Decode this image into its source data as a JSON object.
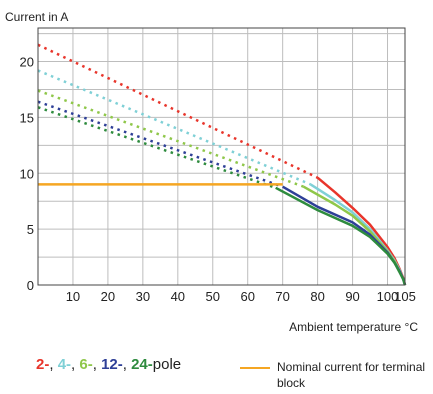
{
  "chart_data": {
    "type": "line",
    "ylabel": "Current in A",
    "xlabel": "Ambient temperature °C",
    "xlim": [
      0,
      105
    ],
    "ylim": [
      0,
      23
    ],
    "x_ticks": [
      10,
      20,
      30,
      40,
      50,
      60,
      70,
      80,
      90,
      100,
      105
    ],
    "x_tick_labels": [
      "10",
      "20",
      "30",
      "40",
      "50",
      "60",
      "70",
      "80",
      "90",
      "100",
      "105"
    ],
    "y_ticks": [
      0,
      5,
      10,
      15,
      20
    ],
    "y_tick_labels": [
      "0",
      "5",
      "10",
      "15",
      "20"
    ],
    "grid": true,
    "series": [
      {
        "name": "2",
        "color": "#e8352b",
        "dotted": [
          [
            0,
            21.5
          ],
          [
            80,
            9.6
          ]
        ],
        "solid": [
          [
            80,
            9.6
          ],
          [
            85,
            8.3
          ],
          [
            90,
            6.9
          ],
          [
            95,
            5.4
          ],
          [
            100,
            3.4
          ],
          [
            102,
            2.4
          ],
          [
            103.5,
            1.4
          ],
          [
            104.5,
            0.6
          ],
          [
            105,
            0
          ]
        ]
      },
      {
        "name": "4",
        "color": "#7fd0d6",
        "dotted": [
          [
            0,
            19.2
          ],
          [
            78,
            9.0
          ]
        ],
        "solid": [
          [
            78,
            9.0
          ],
          [
            85,
            7.6
          ],
          [
            90,
            6.5
          ],
          [
            95,
            5.0
          ],
          [
            100,
            3.1
          ],
          [
            102,
            2.2
          ],
          [
            103.5,
            1.3
          ],
          [
            104.5,
            0.5
          ],
          [
            105,
            0
          ]
        ]
      },
      {
        "name": "6",
        "color": "#8fc74a",
        "dotted": [
          [
            0,
            17.4
          ],
          [
            76,
            8.8
          ]
        ],
        "solid": [
          [
            76,
            8.8
          ],
          [
            85,
            7.2
          ],
          [
            90,
            6.2
          ],
          [
            95,
            4.8
          ],
          [
            100,
            3.0
          ],
          [
            102,
            2.1
          ],
          [
            103.5,
            1.2
          ],
          [
            104.5,
            0.5
          ],
          [
            105,
            0
          ]
        ]
      },
      {
        "name": "12",
        "color": "#2e3f97",
        "dotted": [
          [
            0,
            16.4
          ],
          [
            70,
            8.8
          ]
        ],
        "solid": [
          [
            70,
            8.8
          ],
          [
            80,
            7.0
          ],
          [
            90,
            5.6
          ],
          [
            95,
            4.5
          ],
          [
            100,
            2.9
          ],
          [
            102,
            2.0
          ],
          [
            103.5,
            1.2
          ],
          [
            104.5,
            0.5
          ],
          [
            105,
            0
          ]
        ]
      },
      {
        "name": "24",
        "color": "#2e8b3e",
        "dotted": [
          [
            0,
            15.9
          ],
          [
            68,
            8.7
          ]
        ],
        "solid": [
          [
            68,
            8.7
          ],
          [
            80,
            6.7
          ],
          [
            90,
            5.3
          ],
          [
            95,
            4.3
          ],
          [
            100,
            2.8
          ],
          [
            102,
            2.0
          ],
          [
            103.5,
            1.1
          ],
          [
            104.5,
            0.5
          ],
          [
            105,
            0
          ]
        ]
      },
      {
        "name": "Nominal current for terminal block",
        "color": "#f5a623",
        "solid": [
          [
            0,
            9
          ],
          [
            70,
            9
          ]
        ]
      }
    ]
  },
  "legend": {
    "poles": [
      {
        "label": "2-",
        "color": "#e8352b"
      },
      {
        "label": "4-",
        "color": "#7fd0d6"
      },
      {
        "label": "6-",
        "color": "#8fc74a"
      },
      {
        "label": "12-",
        "color": "#2e3f97"
      },
      {
        "label": "24-",
        "color": "#2e8b3e"
      }
    ],
    "separator": ",",
    "suffix": "pole",
    "nominal_label": "Nominal current for terminal block",
    "nominal_color": "#f5a623"
  }
}
